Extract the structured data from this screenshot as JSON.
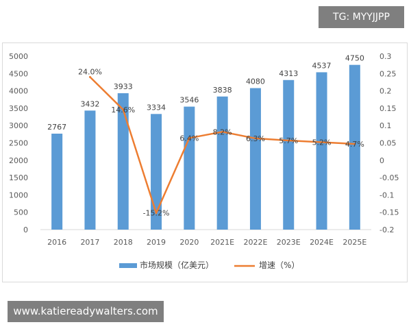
{
  "watermark_top": "TG: MYYJJPP",
  "watermark_bottom": "www.katiereadywalters.com",
  "chart_data": {
    "type": "bar",
    "categories": [
      "2016",
      "2017",
      "2018",
      "2019",
      "2020",
      "2021E",
      "2022E",
      "2023E",
      "2024E",
      "2025E"
    ],
    "series": [
      {
        "name": "市场规模（亿美元）",
        "type": "bar",
        "axis": "left",
        "values": [
          2767,
          3432,
          3933,
          3334,
          3546,
          3838,
          4080,
          4313,
          4537,
          4750
        ],
        "labels": [
          "2767",
          "3432",
          "3933",
          "3334",
          "3546",
          "3838",
          "4080",
          "4313",
          "4537",
          "4750"
        ],
        "color": "#5b9bd5"
      },
      {
        "name": "增速（%）",
        "type": "line",
        "axis": "right",
        "values": [
          null,
          0.24,
          0.146,
          -0.152,
          0.064,
          0.082,
          0.063,
          0.057,
          0.052,
          0.047
        ],
        "labels": [
          "",
          "24.0%",
          "14.6%",
          "-15.2%",
          "6.4%",
          "8.2%",
          "6.3%",
          "5.7%",
          "5.2%",
          "4.7%"
        ],
        "color": "#ed7d31"
      }
    ],
    "y_left": {
      "min": 0,
      "max": 5000,
      "step": 500,
      "ticks": [
        "0",
        "500",
        "1000",
        "1500",
        "2000",
        "2500",
        "3000",
        "3500",
        "4000",
        "4500",
        "5000"
      ]
    },
    "y_right": {
      "min": -0.2,
      "max": 0.3,
      "step": 0.05,
      "ticks": [
        "-0.2",
        "-0.15",
        "-0.1",
        "-0.05",
        "0",
        "0.05",
        "0.1",
        "0.15",
        "0.2",
        "0.25",
        "0.3"
      ]
    },
    "grid": false,
    "legend_position": "bottom"
  }
}
